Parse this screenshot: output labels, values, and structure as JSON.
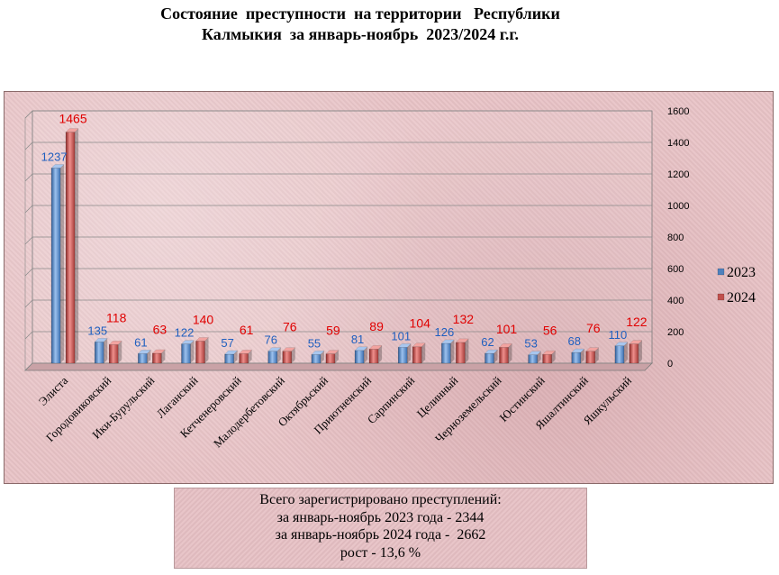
{
  "title": {
    "line1": "Состояние  преступности  на территории   Республики",
    "line2": "Калмыкия  за январь-ноябрь  2023/2024 г.г."
  },
  "chart_data": {
    "type": "bar",
    "categories": [
      "Элиста",
      "Городовиковский",
      "Ики-Бурульский",
      "Лаганский",
      "Кетченеровский",
      "Малодербетовский",
      "Октябрьский",
      "Приютненский",
      "Сарпинский",
      "Целинный",
      "Черноземельский",
      "Юстинский",
      "Яшалтинский",
      "Яшкульский"
    ],
    "series": [
      {
        "name": "2023",
        "color": "#4f81bd",
        "label_color": "#1f5fbf",
        "values": [
          1237,
          135,
          61,
          122,
          57,
          76,
          55,
          81,
          101,
          126,
          62,
          53,
          68,
          110
        ]
      },
      {
        "name": "2024",
        "color": "#c0504d",
        "label_color": "#e00000",
        "values": [
          1465,
          118,
          63,
          140,
          61,
          76,
          59,
          89,
          104,
          132,
          101,
          56,
          76,
          122
        ]
      }
    ],
    "ylim": [
      0,
      1600
    ],
    "yticks": [
      "0",
      "200",
      "400",
      "600",
      "800",
      "1000",
      "1200",
      "1400",
      "1600"
    ],
    "grid": true,
    "legend_position": "right"
  },
  "summary": {
    "line1": "Всего зарегистрировано преступлений:",
    "line2": "за январь-ноябрь 2023 года - 2344",
    "line3": "за январь-ноябрь 2024 года -  2662",
    "line4": "рост - 13,6 %"
  }
}
